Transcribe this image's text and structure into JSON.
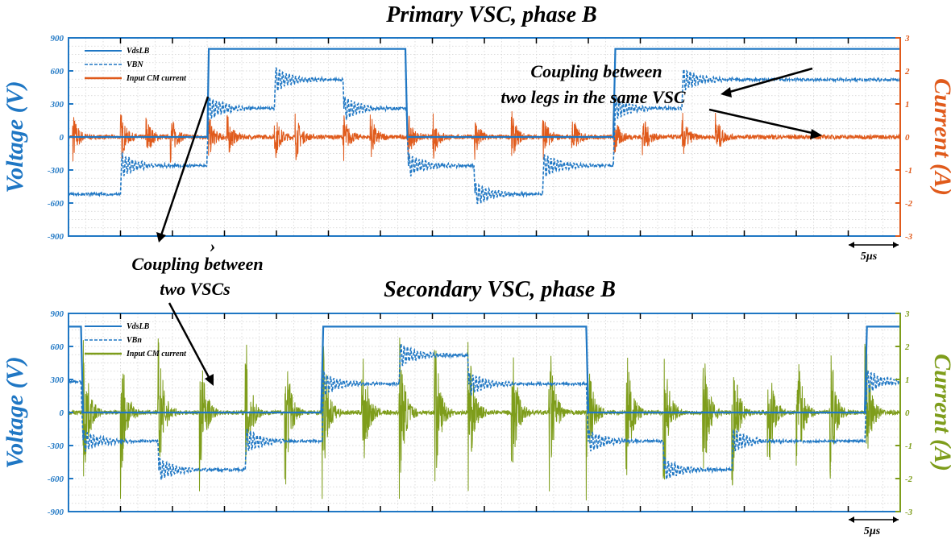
{
  "chart_data": [
    {
      "type": "line",
      "title": "Primary VSC, phase B",
      "ylabel": "Voltage (V)",
      "y2label": "Current (A)",
      "ylim": [
        -900,
        900
      ],
      "y2lim": [
        -3,
        3
      ],
      "yticks": [
        "900",
        "600",
        "300",
        "0",
        "-300",
        "-600",
        "-900"
      ],
      "y2ticks": [
        "3",
        "2",
        "1",
        "0",
        "-1",
        "-2",
        "-3"
      ],
      "xlim": [
        0,
        40
      ],
      "x_unit": "µs",
      "scale_bar_label": "5µs",
      "grid": true,
      "legend_position": "top-left",
      "legend": [
        "VdsLB",
        "VBN",
        "Input CM current"
      ],
      "colors": {
        "voltage": "#1f77c4",
        "current": "#e05a1b"
      },
      "series": [
        {
          "name": "VdsLB",
          "axis": "left",
          "style": "solid",
          "x": [
            0,
            6.68,
            6.75,
            16.2,
            16.3,
            26.2,
            26.3,
            40
          ],
          "y": [
            0,
            0,
            800,
            800,
            0,
            0,
            800,
            800
          ]
        },
        {
          "name": "VBN",
          "axis": "left",
          "style": "dashed",
          "x": [
            0,
            2.5,
            2.55,
            6.65,
            6.75,
            9.9,
            9.95,
            13.2,
            13.25,
            16.25,
            16.35,
            19.5,
            19.55,
            22.8,
            22.85,
            26.2,
            26.3,
            29.5,
            29.55,
            40
          ],
          "y": [
            -520,
            -520,
            -260,
            -260,
            260,
            260,
            520,
            520,
            260,
            260,
            -260,
            -260,
            -520,
            -520,
            -260,
            -260,
            260,
            260,
            520,
            520
          ]
        },
        {
          "name": "Input CM current",
          "axis": "right",
          "bursts_x": [
            0.2,
            2.5,
            3.7,
            4.9,
            6.7,
            7.6,
            9.9,
            10.9,
            13.2,
            14.5,
            16.3,
            17.5,
            19.5,
            21.3,
            22.8,
            24.2,
            26.2,
            27.6,
            29.5,
            31.1
          ],
          "baseline": 0,
          "peak": 0.8
        }
      ]
    },
    {
      "type": "line",
      "title": "Secondary VSC, phase B",
      "ylabel": "Voltage (V)",
      "y2label": "Current (A)",
      "ylim": [
        -900,
        900
      ],
      "y2lim": [
        -3,
        3
      ],
      "yticks": [
        "900",
        "600",
        "300",
        "0",
        "-300",
        "-600",
        "-900"
      ],
      "y2ticks": [
        "3",
        "2",
        "1",
        "0",
        "-1",
        "-2",
        "-3"
      ],
      "xlim": [
        0,
        40
      ],
      "x_unit": "µs",
      "scale_bar_label": "5µs",
      "grid": true,
      "legend_position": "top-left",
      "legend": [
        "VdsLB",
        "VBn",
        "Input CM current"
      ],
      "colors": {
        "voltage": "#1f77c4",
        "current": "#7e9d1b"
      },
      "series": [
        {
          "name": "VdsLB",
          "axis": "left",
          "style": "solid",
          "x": [
            0,
            0.6,
            0.7,
            12.15,
            12.25,
            24.9,
            25.0,
            38.3,
            38.4,
            40
          ],
          "y": [
            780,
            780,
            0,
            0,
            780,
            780,
            0,
            0,
            780,
            780
          ]
        },
        {
          "name": "VBn",
          "axis": "left",
          "style": "dashed",
          "x": [
            0,
            0.6,
            0.7,
            4.3,
            4.35,
            8.5,
            8.55,
            12.2,
            12.25,
            15.9,
            15.95,
            19.2,
            19.25,
            24.9,
            25.0,
            28.6,
            28.65,
            31.9,
            31.95,
            38.3,
            38.4,
            40
          ],
          "y": [
            280,
            280,
            -260,
            -260,
            -520,
            -520,
            -260,
            -260,
            260,
            260,
            520,
            520,
            260,
            260,
            -260,
            -260,
            -520,
            -520,
            -260,
            -260,
            280,
            280
          ]
        },
        {
          "name": "Input CM current",
          "axis": "right",
          "bursts_x": [
            0.7,
            2.5,
            4.3,
            6.3,
            8.5,
            10.4,
            12.2,
            14.1,
            15.9,
            17.6,
            19.2,
            21.3,
            23.1,
            24.9,
            26.8,
            28.6,
            30.5,
            31.9,
            33.6,
            35.0,
            36.6,
            38.3
          ],
          "baseline": 0,
          "peak": 2.7
        }
      ]
    }
  ],
  "annotations": {
    "coupling_legs_line1": "Coupling between",
    "coupling_legs_line2": "two legs in the same VSC",
    "coupling_vscs_line1": "Coupling between",
    "coupling_vscs_line2": "two VSCs",
    "stray_mark": "›"
  }
}
